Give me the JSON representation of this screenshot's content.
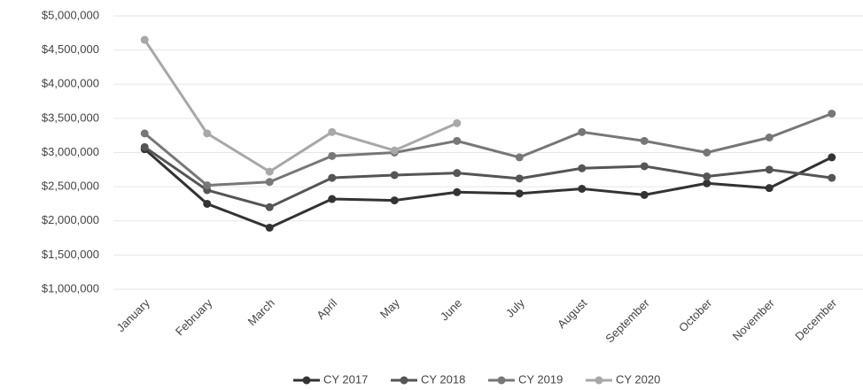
{
  "chart_data": {
    "type": "line",
    "categories": [
      "January",
      "February",
      "March",
      "April",
      "May",
      "June",
      "July",
      "August",
      "September",
      "October",
      "November",
      "December"
    ],
    "series": [
      {
        "name": "CY 2017",
        "color": "#333333",
        "values": [
          3050000,
          2250000,
          1900000,
          2320000,
          2300000,
          2420000,
          2400000,
          2470000,
          2380000,
          2550000,
          2480000,
          2930000
        ]
      },
      {
        "name": "CY 2018",
        "color": "#555555",
        "values": [
          3080000,
          2450000,
          2200000,
          2630000,
          2670000,
          2700000,
          2620000,
          2770000,
          2800000,
          2650000,
          2750000,
          2630000
        ]
      },
      {
        "name": "CY 2019",
        "color": "#777777",
        "values": [
          3280000,
          2520000,
          2570000,
          2950000,
          3000000,
          3170000,
          2930000,
          3300000,
          3170000,
          3000000,
          3220000,
          3570000
        ]
      },
      {
        "name": "CY 2020",
        "color": "#a8a8a8",
        "values": [
          4650000,
          3280000,
          2720000,
          3300000,
          3030000,
          3430000,
          null,
          null,
          null,
          null,
          null,
          null
        ]
      }
    ],
    "ylim": [
      1000000,
      5000000
    ],
    "yticks": [
      {
        "value": 1000000,
        "label": "$1,000,000"
      },
      {
        "value": 1500000,
        "label": "$1,500,000"
      },
      {
        "value": 2000000,
        "label": "$2,000,000"
      },
      {
        "value": 2500000,
        "label": "$2,500,000"
      },
      {
        "value": 3000000,
        "label": "$3,000,000"
      },
      {
        "value": 3500000,
        "label": "$3,500,000"
      },
      {
        "value": 4000000,
        "label": "$4,000,000"
      },
      {
        "value": 4500000,
        "label": "$4,500,000"
      },
      {
        "value": 5000000,
        "label": "$5,000,000"
      }
    ],
    "grid": true,
    "legend": "bottom"
  }
}
